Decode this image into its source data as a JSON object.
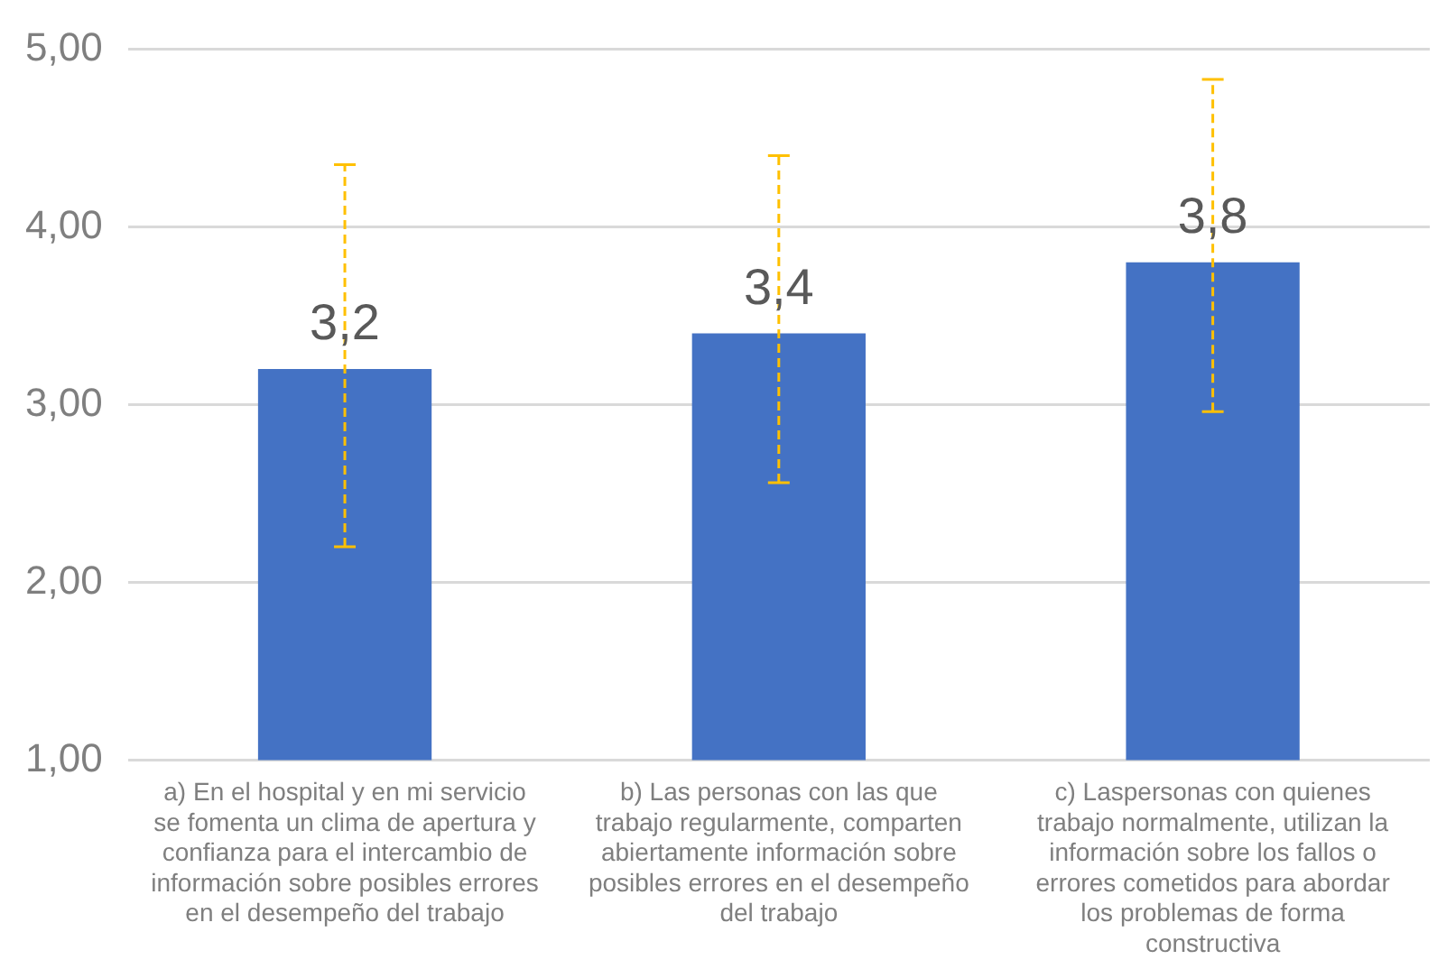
{
  "chart_data": {
    "type": "bar",
    "categories": [
      "a) En el hospital y en mi servicio se fomenta un clima de apertura y confianza para el intercambio de información sobre posibles errores en el desempeño del trabajo",
      "b) Las personas con las que trabajo regularmente, comparten abiertamente información sobre posibles errores en el desempeño del trabajo",
      "c) Laspersonas con quienes trabajo normalmente, utilizan la información sobre los fallos o errores cometidos para abordar los problemas de forma constructiva"
    ],
    "values": [
      3.2,
      3.4,
      3.8
    ],
    "color": "#4472c4",
    "errors": [
      [
        2.2,
        4.35
      ],
      [
        2.56,
        4.4
      ],
      [
        2.96,
        4.83
      ]
    ],
    "value_labels": [
      "3,2",
      "3,4",
      "3,8"
    ],
    "ylim": [
      1,
      5
    ],
    "yticks": [
      {
        "value": 1,
        "label": "1,00"
      },
      {
        "value": 2,
        "label": "2,00"
      },
      {
        "value": 3,
        "label": "3,00"
      },
      {
        "value": 4,
        "label": "4,00"
      },
      {
        "value": 5,
        "label": "5,00"
      }
    ],
    "grid": "y"
  }
}
